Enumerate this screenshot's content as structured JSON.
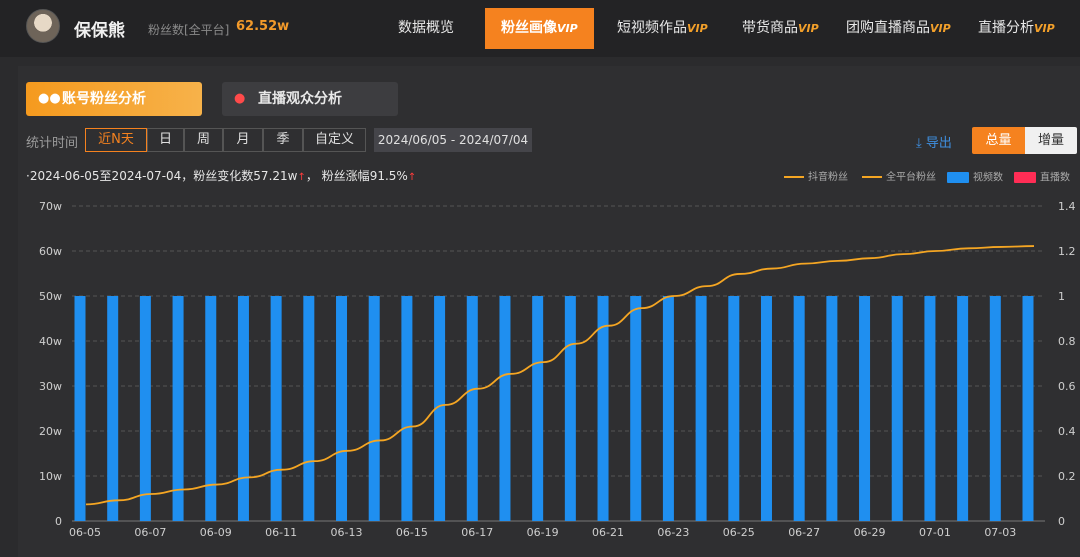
{
  "header": {
    "username": "保保熊",
    "fans_label": "粉丝数[全平台]",
    "fans_value": "62.52w",
    "nav": [
      {
        "label": "数据概览",
        "vip": ""
      },
      {
        "label": "粉丝画像",
        "vip": "VIP"
      },
      {
        "label": "短视频作品",
        "vip": "VIP"
      },
      {
        "label": "带货商品",
        "vip": "VIP"
      },
      {
        "label": "团购直播商品",
        "vip": "VIP"
      },
      {
        "label": "直播分析",
        "vip": "VIP"
      }
    ]
  },
  "subtabs": {
    "account": "账号粉丝分析",
    "live": "直播观众分析"
  },
  "filters": {
    "label": "统计时间",
    "options": [
      "近N天",
      "日",
      "周",
      "月",
      "季",
      "自定义"
    ],
    "selected": "近N天",
    "date_range": "2024/06/05  -  2024/07/04"
  },
  "actions": {
    "export": "导出",
    "total": "总量",
    "increment": "增量"
  },
  "summary": {
    "prefix": "·2024-06-05至2024-07-04，粉丝变化数",
    "change": "57.21w",
    "mid": "，  粉丝涨幅",
    "growth": "91.5%"
  },
  "legend": {
    "douyin": "抖音粉丝",
    "all_platform": "全平台粉丝",
    "video": "视频数",
    "live": "直播数"
  },
  "colors": {
    "accent": "#f5821f",
    "bar": "#1f8ff0",
    "line": "#f5a623",
    "live": "#ff2d55"
  },
  "chart_data": {
    "type": "bar+line",
    "x": [
      "06-05",
      "06-06",
      "06-07",
      "06-08",
      "06-09",
      "06-10",
      "06-11",
      "06-12",
      "06-13",
      "06-14",
      "06-15",
      "06-16",
      "06-17",
      "06-18",
      "06-19",
      "06-20",
      "06-21",
      "06-22",
      "06-23",
      "06-24",
      "06-25",
      "06-26",
      "06-27",
      "06-28",
      "06-29",
      "06-30",
      "07-01",
      "07-02",
      "07-03",
      "07-04"
    ],
    "x_tick_labels": [
      "06-05",
      "06-07",
      "06-09",
      "06-11",
      "06-13",
      "06-15",
      "06-17",
      "06-19",
      "06-21",
      "06-23",
      "06-25",
      "06-27",
      "06-29",
      "07-01",
      "07-03"
    ],
    "y_left_ticks": [
      "0",
      "10w",
      "20w",
      "30w",
      "40w",
      "50w",
      "60w",
      "70w"
    ],
    "y_left_range": [
      0,
      70
    ],
    "y_right_ticks": [
      "0",
      "0.2",
      "0.4",
      "0.6",
      "0.8",
      "1",
      "1.2",
      "1.4"
    ],
    "y_right_range": [
      0,
      1.4
    ],
    "series": [
      {
        "name": "视频数",
        "kind": "bar",
        "axis": "right",
        "values": [
          1,
          1,
          1,
          1,
          1,
          1,
          1,
          1,
          1,
          1,
          1,
          1,
          1,
          1,
          1,
          1,
          1,
          1,
          1,
          1,
          1,
          1,
          1,
          1,
          1,
          1,
          1,
          1,
          1,
          1
        ]
      },
      {
        "name": "抖音粉丝",
        "kind": "line",
        "axis": "left",
        "values": [
          3.7,
          4.6,
          6.0,
          7.0,
          8.1,
          9.7,
          11.4,
          13.3,
          15.6,
          17.9,
          21.0,
          25.8,
          29.4,
          32.7,
          35.3,
          39.4,
          43.4,
          47.3,
          50.0,
          52.2,
          54.9,
          56.1,
          57.2,
          57.8,
          58.4,
          59.3,
          60.0,
          60.6,
          60.9,
          61.1
        ]
      }
    ],
    "grid": true
  }
}
